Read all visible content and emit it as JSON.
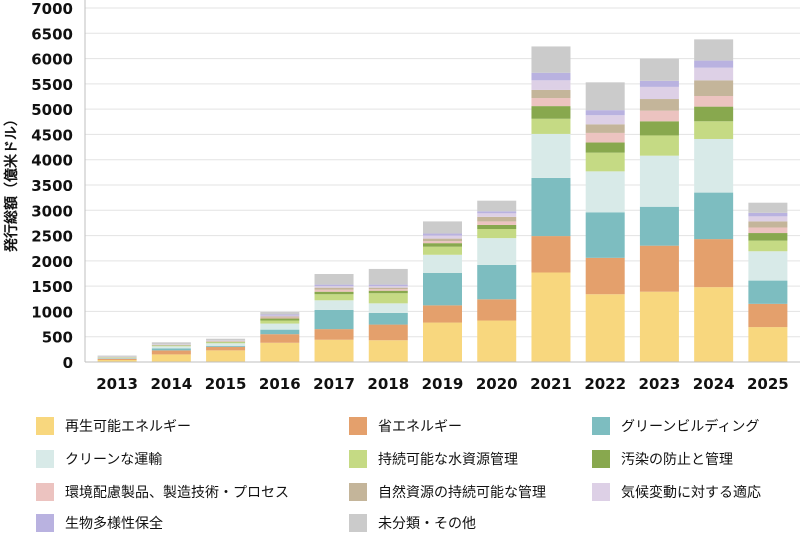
{
  "chart_data": {
    "type": "bar",
    "stacked": true,
    "title": "",
    "xlabel": "",
    "ylabel": "発行総額（億米ドル）",
    "ylim": [
      0,
      7000
    ],
    "yticks": [
      0,
      500,
      1000,
      1500,
      2000,
      2500,
      3000,
      3500,
      4000,
      4500,
      5000,
      5500,
      6000,
      6500,
      7000
    ],
    "grid": true,
    "legend_position": "bottom",
    "categories": [
      "2013",
      "2014",
      "2015",
      "2016",
      "2017",
      "2018",
      "2019",
      "2020",
      "2021",
      "2022",
      "2023",
      "2024",
      "2025"
    ],
    "series": [
      {
        "name": "再生可能エネルギー",
        "color": "#F8D77E",
        "values": [
          40,
          150,
          230,
          380,
          440,
          430,
          780,
          820,
          1770,
          1340,
          1390,
          1480,
          690
        ]
      },
      {
        "name": "省エネルギー",
        "color": "#E4A06C",
        "values": [
          25,
          80,
          70,
          170,
          210,
          310,
          340,
          420,
          720,
          720,
          910,
          950,
          460
        ]
      },
      {
        "name": "グリーンビルディング",
        "color": "#7DBDC0",
        "values": [
          10,
          40,
          20,
          90,
          380,
          230,
          640,
          680,
          1150,
          900,
          770,
          920,
          460
        ]
      },
      {
        "name": "クリーンな運輸",
        "color": "#D8EAE8",
        "values": [
          10,
          40,
          50,
          120,
          190,
          190,
          360,
          530,
          870,
          810,
          1010,
          1060,
          580
        ]
      },
      {
        "name": "持続可能な水資源管理",
        "color": "#C5DA84",
        "values": [
          5,
          10,
          20,
          60,
          120,
          200,
          160,
          180,
          300,
          370,
          400,
          350,
          210
        ]
      },
      {
        "name": "汚染の防止と管理",
        "color": "#88A84E",
        "values": [
          5,
          10,
          10,
          40,
          50,
          50,
          70,
          80,
          250,
          200,
          280,
          290,
          150
        ]
      },
      {
        "name": "環境配慮製品、製造技術・プロセス",
        "color": "#ECC3C0",
        "values": [
          3,
          5,
          10,
          20,
          40,
          30,
          40,
          70,
          160,
          190,
          210,
          210,
          110
        ]
      },
      {
        "name": "自然資源の持続可能な管理",
        "color": "#C4B59A",
        "values": [
          3,
          5,
          10,
          20,
          40,
          30,
          50,
          90,
          160,
          170,
          230,
          310,
          120
        ]
      },
      {
        "name": "気候変動に対する適応",
        "color": "#DDD0E6",
        "values": [
          3,
          5,
          5,
          20,
          30,
          30,
          60,
          70,
          190,
          180,
          240,
          250,
          100
        ]
      },
      {
        "name": "生物多様性保全",
        "color": "#B9B2E0",
        "values": [
          3,
          5,
          5,
          20,
          30,
          30,
          40,
          40,
          150,
          100,
          120,
          140,
          70
        ]
      },
      {
        "name": "未分類・その他",
        "color": "#CBCBCB",
        "values": [
          20,
          40,
          30,
          50,
          210,
          310,
          240,
          210,
          520,
          550,
          440,
          420,
          200
        ]
      }
    ]
  }
}
